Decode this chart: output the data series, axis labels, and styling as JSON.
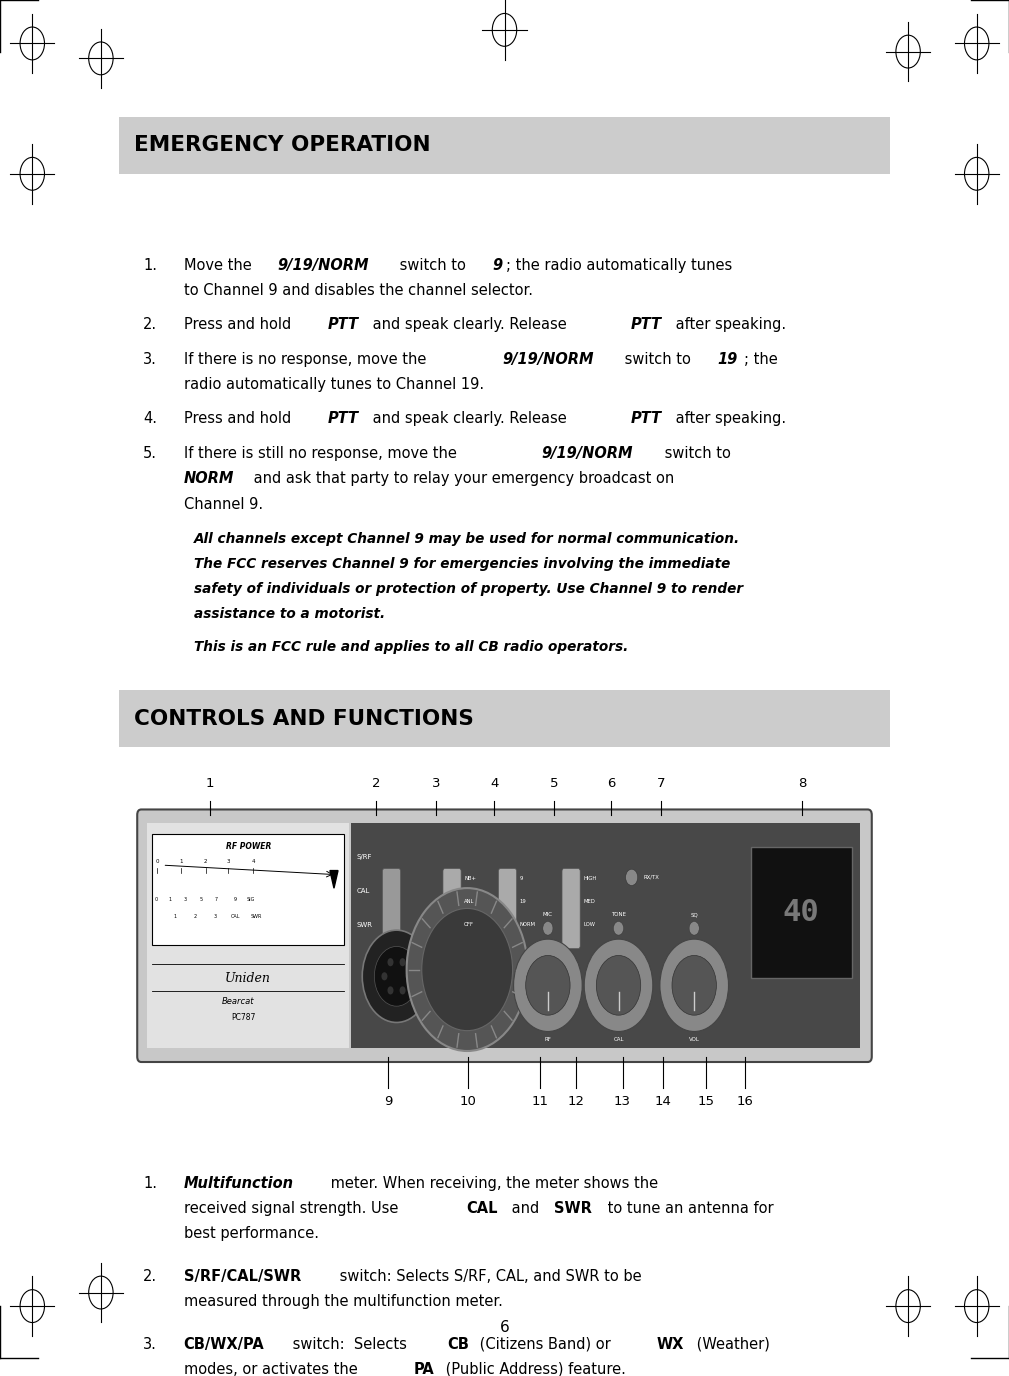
{
  "bg_color": "#ffffff",
  "section1_title": "EMERGENCY OPERATION",
  "section1_title_bg": "#cccccc",
  "section2_title": "CONTROLS AND FUNCTIONS",
  "section2_title_bg": "#cccccc",
  "page_number": "6",
  "em_items": [
    {
      "num": "1.",
      "lines": [
        [
          {
            "t": "Move the ",
            "b": false,
            "i": false
          },
          {
            "t": "9/19/NORM",
            "b": true,
            "i": true
          },
          {
            "t": " switch to ",
            "b": false,
            "i": false
          },
          {
            "t": "9",
            "b": true,
            "i": true
          },
          {
            "t": "; the radio automatically tunes",
            "b": false,
            "i": false
          }
        ],
        [
          {
            "t": "to Channel 9 and disables the channel selector.",
            "b": false,
            "i": false
          }
        ]
      ]
    },
    {
      "num": "2.",
      "lines": [
        [
          {
            "t": "Press and hold ",
            "b": false,
            "i": false
          },
          {
            "t": "PTT",
            "b": true,
            "i": true
          },
          {
            "t": " and speak clearly. Release ",
            "b": false,
            "i": false
          },
          {
            "t": "PTT",
            "b": true,
            "i": true
          },
          {
            "t": " after speaking.",
            "b": false,
            "i": false
          }
        ]
      ]
    },
    {
      "num": "3.",
      "lines": [
        [
          {
            "t": "If there is no response, move the ",
            "b": false,
            "i": false
          },
          {
            "t": "9/19/NORM",
            "b": true,
            "i": true
          },
          {
            "t": " switch to ",
            "b": false,
            "i": false
          },
          {
            "t": "19",
            "b": true,
            "i": true
          },
          {
            "t": "; the",
            "b": false,
            "i": false
          }
        ],
        [
          {
            "t": "radio automatically tunes to Channel 19.",
            "b": false,
            "i": false
          }
        ]
      ]
    },
    {
      "num": "4.",
      "lines": [
        [
          {
            "t": "Press and hold ",
            "b": false,
            "i": false
          },
          {
            "t": "PTT",
            "b": true,
            "i": true
          },
          {
            "t": " and speak clearly. Release ",
            "b": false,
            "i": false
          },
          {
            "t": "PTT",
            "b": true,
            "i": true
          },
          {
            "t": " after speaking.",
            "b": false,
            "i": false
          }
        ]
      ]
    },
    {
      "num": "5.",
      "lines": [
        [
          {
            "t": "If there is still no response, move the ",
            "b": false,
            "i": false
          },
          {
            "t": "9/19/NORM",
            "b": true,
            "i": true
          },
          {
            "t": " switch to",
            "b": false,
            "i": false
          }
        ],
        [
          {
            "t": "NORM",
            "b": true,
            "i": true
          },
          {
            "t": " and ask that party to relay your emergency broadcast on",
            "b": false,
            "i": false
          }
        ],
        [
          {
            "t": "Channel 9.",
            "b": false,
            "i": false
          }
        ]
      ]
    }
  ],
  "bq1_lines": [
    "All channels except Channel 9 may be used for normal communication.",
    "The FCC reserves Channel 9 for emergencies involving the immediate",
    "safety of individuals or protection of property. Use Channel 9 to render",
    "assistance to a motorist."
  ],
  "bq2": "This is an FCC rule and applies to all CB radio operators.",
  "bottom_items": [
    {
      "num": "1.",
      "lines": [
        [
          {
            "t": "Multifunction",
            "b": true,
            "i": true
          },
          {
            "t": " meter. When receiving, the meter shows the",
            "b": false,
            "i": false
          }
        ],
        [
          {
            "t": "received signal strength. Use ",
            "b": false,
            "i": false
          },
          {
            "t": "CAL",
            "b": true,
            "i": false
          },
          {
            "t": " and ",
            "b": false,
            "i": false
          },
          {
            "t": "SWR",
            "b": true,
            "i": false
          },
          {
            "t": " to tune an antenna for",
            "b": false,
            "i": false
          }
        ],
        [
          {
            "t": "best performance.",
            "b": false,
            "i": false
          }
        ]
      ]
    },
    {
      "num": "2.",
      "lines": [
        [
          {
            "t": "S/RF/CAL/SWR",
            "b": true,
            "i": false
          },
          {
            "t": " switch: Selects S/RF, CAL, and SWR to be",
            "b": false,
            "i": false
          }
        ],
        [
          {
            "t": "measured through the multifunction meter.",
            "b": false,
            "i": false
          }
        ]
      ]
    },
    {
      "num": "3.",
      "lines": [
        [
          {
            "t": "CB/WX/PA",
            "b": true,
            "i": false
          },
          {
            "t": " switch:  Selects ",
            "b": false,
            "i": false
          },
          {
            "t": "CB",
            "b": true,
            "i": false
          },
          {
            "t": " (Citizens Band) or ",
            "b": false,
            "i": false
          },
          {
            "t": "WX",
            "b": true,
            "i": false
          },
          {
            "t": " (Weather)",
            "b": false,
            "i": false
          }
        ],
        [
          {
            "t": "modes, or activates the ",
            "b": false,
            "i": false
          },
          {
            "t": "PA",
            "b": true,
            "i": false
          },
          {
            "t": " (Public Address) feature.",
            "b": false,
            "i": false
          }
        ]
      ]
    }
  ],
  "num_labels_top": [
    [
      "1",
      0.208
    ],
    [
      "2",
      0.373
    ],
    [
      "3",
      0.432
    ],
    [
      "4",
      0.49
    ],
    [
      "5",
      0.549
    ],
    [
      "6",
      0.606
    ],
    [
      "7",
      0.655
    ],
    [
      "8",
      0.795
    ]
  ],
  "num_labels_bot": [
    [
      "9",
      0.385
    ],
    [
      "10",
      0.464
    ],
    [
      "11",
      0.535
    ],
    [
      "12",
      0.571
    ],
    [
      "13",
      0.617
    ],
    [
      "14",
      0.657
    ],
    [
      "15",
      0.7
    ],
    [
      "16",
      0.738
    ]
  ]
}
